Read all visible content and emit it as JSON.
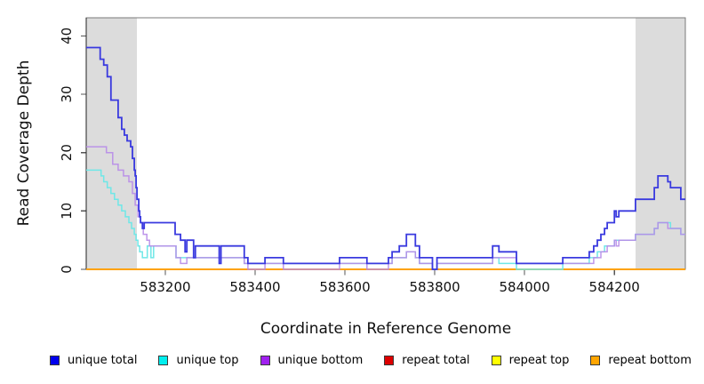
{
  "figure": {
    "xlabel": "Coordinate in Reference Genome",
    "ylabel": "Read Coverage Depth"
  },
  "chart_data": {
    "type": "line",
    "subtype": "step-after",
    "title": "",
    "xlabel": "Coordinate in Reference Genome",
    "ylabel": "Read Coverage Depth",
    "xlim": [
      583024,
      584358
    ],
    "ylim": [
      0,
      43.1
    ],
    "x_ticks": [
      583200,
      583400,
      583600,
      583800,
      584000,
      584200
    ],
    "y_ticks": [
      0,
      10,
      20,
      30,
      40
    ],
    "grid": false,
    "legend_position": "bottom",
    "shade_color": "#DCDCDC",
    "shaded_x_ranges": [
      [
        583024,
        583137
      ],
      [
        584247,
        584358
      ]
    ],
    "series": [
      {
        "name": "unique total",
        "color": "#0000EE",
        "line_color": "#3A3ADF",
        "width": 1.8,
        "points": [
          [
            583024,
            38
          ],
          [
            583055,
            36
          ],
          [
            583063,
            35
          ],
          [
            583071,
            33
          ],
          [
            583079,
            29
          ],
          [
            583095,
            26
          ],
          [
            583103,
            24
          ],
          [
            583109,
            23
          ],
          [
            583115,
            22
          ],
          [
            583123,
            21
          ],
          [
            583127,
            19
          ],
          [
            583131,
            17
          ],
          [
            583133,
            16
          ],
          [
            583135,
            14
          ],
          [
            583137,
            12
          ],
          [
            583141,
            10
          ],
          [
            583143,
            9
          ],
          [
            583145,
            8
          ],
          [
            583149,
            7
          ],
          [
            583153,
            8
          ],
          [
            583222,
            6
          ],
          [
            583234,
            5
          ],
          [
            583244,
            3
          ],
          [
            583248,
            5
          ],
          [
            583263,
            2
          ],
          [
            583267,
            4
          ],
          [
            583320,
            1
          ],
          [
            583324,
            4
          ],
          [
            583376,
            2
          ],
          [
            583384,
            1
          ],
          [
            583422,
            2
          ],
          [
            583463,
            1
          ],
          [
            583588,
            2
          ],
          [
            583649,
            1
          ],
          [
            583697,
            2
          ],
          [
            583705,
            3
          ],
          [
            583721,
            4
          ],
          [
            583737,
            6
          ],
          [
            583757,
            4
          ],
          [
            583766,
            2
          ],
          [
            583795,
            0
          ],
          [
            583805,
            2
          ],
          [
            583929,
            4
          ],
          [
            583943,
            3
          ],
          [
            583982,
            1
          ],
          [
            584085,
            2
          ],
          [
            584144,
            3
          ],
          [
            584154,
            4
          ],
          [
            584162,
            5
          ],
          [
            584170,
            6
          ],
          [
            584178,
            7
          ],
          [
            584184,
            8
          ],
          [
            584200,
            10
          ],
          [
            584204,
            9
          ],
          [
            584210,
            10
          ],
          [
            584247,
            12
          ],
          [
            584289,
            14
          ],
          [
            584297,
            16
          ],
          [
            584319,
            15
          ],
          [
            584325,
            14
          ],
          [
            584348,
            12
          ],
          [
            584358,
            12
          ]
        ]
      },
      {
        "name": "unique top",
        "color": "#00EEEE",
        "line_color": "#6FE7E7",
        "width": 1.5,
        "points": [
          [
            583024,
            17
          ],
          [
            583057,
            16
          ],
          [
            583063,
            15
          ],
          [
            583071,
            14
          ],
          [
            583079,
            13
          ],
          [
            583087,
            12
          ],
          [
            583095,
            11
          ],
          [
            583103,
            10
          ],
          [
            583111,
            9
          ],
          [
            583119,
            8
          ],
          [
            583125,
            7
          ],
          [
            583131,
            6
          ],
          [
            583135,
            5
          ],
          [
            583139,
            4
          ],
          [
            583143,
            3
          ],
          [
            583149,
            2
          ],
          [
            583160,
            4
          ],
          [
            583168,
            2
          ],
          [
            583174,
            4
          ],
          [
            583224,
            2
          ],
          [
            583376,
            1
          ],
          [
            583697,
            1
          ],
          [
            583705,
            2
          ],
          [
            583737,
            3
          ],
          [
            583757,
            2
          ],
          [
            583766,
            1
          ],
          [
            583795,
            0
          ],
          [
            583805,
            1
          ],
          [
            583929,
            2
          ],
          [
            583943,
            1
          ],
          [
            583982,
            0
          ],
          [
            584085,
            1
          ],
          [
            584144,
            2
          ],
          [
            584162,
            3
          ],
          [
            584178,
            4
          ],
          [
            584200,
            5
          ],
          [
            584247,
            6
          ],
          [
            584289,
            7
          ],
          [
            584297,
            8
          ],
          [
            584325,
            7
          ],
          [
            584348,
            6
          ],
          [
            584358,
            6
          ]
        ]
      },
      {
        "name": "unique bottom",
        "color": "#A020F0",
        "line_color": "#B78BE8",
        "width": 1.5,
        "points": [
          [
            583024,
            21
          ],
          [
            583069,
            20
          ],
          [
            583083,
            18
          ],
          [
            583095,
            17
          ],
          [
            583107,
            16
          ],
          [
            583119,
            15
          ],
          [
            583127,
            13
          ],
          [
            583133,
            11
          ],
          [
            583139,
            9
          ],
          [
            583145,
            8
          ],
          [
            583151,
            6
          ],
          [
            583159,
            5
          ],
          [
            583165,
            4
          ],
          [
            583224,
            2
          ],
          [
            583234,
            1
          ],
          [
            583248,
            2
          ],
          [
            583376,
            1
          ],
          [
            583384,
            0
          ],
          [
            583422,
            1
          ],
          [
            583463,
            0
          ],
          [
            583588,
            1
          ],
          [
            583649,
            0
          ],
          [
            583697,
            1
          ],
          [
            583705,
            2
          ],
          [
            583737,
            3
          ],
          [
            583757,
            2
          ],
          [
            583766,
            1
          ],
          [
            583795,
            0
          ],
          [
            583805,
            1
          ],
          [
            583929,
            2
          ],
          [
            583982,
            1
          ],
          [
            584154,
            2
          ],
          [
            584170,
            3
          ],
          [
            584184,
            4
          ],
          [
            584200,
            5
          ],
          [
            584204,
            4
          ],
          [
            584210,
            5
          ],
          [
            584247,
            6
          ],
          [
            584289,
            7
          ],
          [
            584297,
            8
          ],
          [
            584319,
            7
          ],
          [
            584348,
            6
          ],
          [
            584358,
            6
          ]
        ]
      },
      {
        "name": "repeat total",
        "color": "#DD0000",
        "line_color": "#DD2222",
        "width": 1.5,
        "points": [
          [
            583024,
            0
          ],
          [
            584358,
            0
          ]
        ]
      },
      {
        "name": "repeat top",
        "color": "#FFFF00",
        "line_color": "#FFEE00",
        "width": 1.5,
        "points": [
          [
            583024,
            0
          ],
          [
            584358,
            0
          ]
        ]
      },
      {
        "name": "repeat bottom",
        "color": "#FFA500",
        "line_color": "#FF9F00",
        "width": 1.7,
        "points": [
          [
            583024,
            0
          ],
          [
            584358,
            0
          ]
        ]
      }
    ]
  }
}
